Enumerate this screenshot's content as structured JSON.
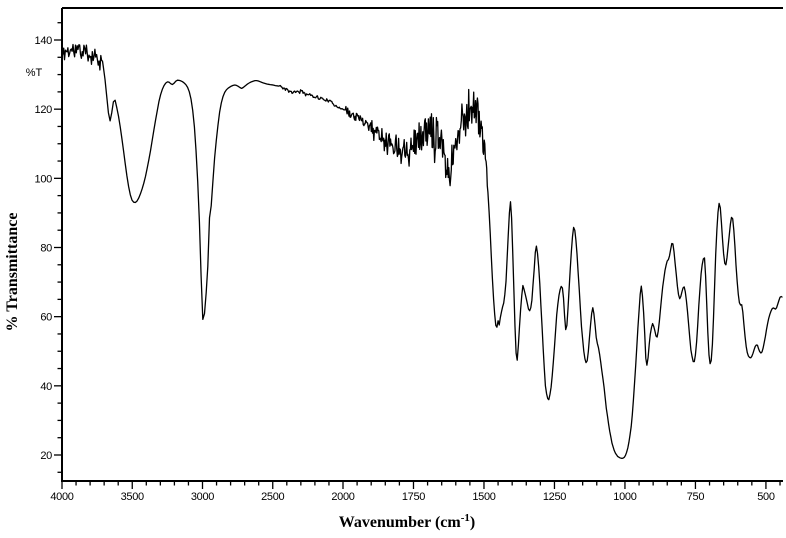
{
  "chart_data": {
    "type": "line",
    "title": "",
    "xlabel": "Wavenumber (cm⁻¹)",
    "xlabel_parts": {
      "pre": "Wavenumber (cm",
      "sup": "-1",
      "post": ")"
    },
    "ylabel": "% Transmittance",
    "y_unit_label": "%T",
    "grid": false,
    "legend": false,
    "colors": {
      "background": "#ffffff",
      "curve": "#000000",
      "axis": "#000000",
      "text": "#000000"
    },
    "x_axis": {
      "max": 4000,
      "min": 443,
      "scale_break": 2000,
      "note": "left segment 500 per division, right segment 250 per division",
      "ticks_major": [
        4000,
        3500,
        3000,
        2500,
        2000,
        1750,
        1500,
        1250,
        1000,
        750,
        500
      ],
      "minor_left": {
        "start": 2100,
        "end": 3900,
        "step": 100
      },
      "minor_right": {
        "start": 450,
        "end": 1950,
        "step": 50
      }
    },
    "y_axis": {
      "min": 12.4,
      "max": 149.2,
      "ticks_major": [
        20,
        40,
        60,
        80,
        100,
        120,
        140
      ],
      "minor": {
        "start": 15,
        "end": 145,
        "step": 5
      }
    },
    "points": [
      [
        4000,
        135
      ],
      [
        3985,
        136.2
      ],
      [
        3965,
        137
      ],
      [
        3945,
        136.6
      ],
      [
        3925,
        137.2
      ],
      [
        3905,
        137.4
      ],
      [
        3885,
        137
      ],
      [
        3865,
        136.8
      ],
      [
        3845,
        136.4
      ],
      [
        3825,
        136.2
      ],
      [
        3805,
        136
      ],
      [
        3785,
        136
      ],
      [
        3765,
        135.6
      ],
      [
        3745,
        135.2
      ],
      [
        3728,
        134.6
      ],
      [
        3712,
        133.6
      ],
      [
        3700,
        131
      ],
      [
        3686,
        125.5
      ],
      [
        3672,
        119.5
      ],
      [
        3660,
        116.3
      ],
      [
        3650,
        117.8
      ],
      [
        3640,
        120.5
      ],
      [
        3630,
        123.2
      ],
      [
        3622,
        122.6
      ],
      [
        3612,
        120.8
      ],
      [
        3600,
        118.5
      ],
      [
        3588,
        115.5
      ],
      [
        3574,
        111.5
      ],
      [
        3560,
        107.5
      ],
      [
        3546,
        103
      ],
      [
        3532,
        99
      ],
      [
        3518,
        95.8
      ],
      [
        3504,
        93.8
      ],
      [
        3490,
        93.1
      ],
      [
        3476,
        93
      ],
      [
        3462,
        93.6
      ],
      [
        3448,
        94.8
      ],
      [
        3434,
        96.4
      ],
      [
        3418,
        98.6
      ],
      [
        3402,
        101.2
      ],
      [
        3386,
        104.4
      ],
      [
        3370,
        108
      ],
      [
        3354,
        112
      ],
      [
        3338,
        116
      ],
      [
        3322,
        119.6
      ],
      [
        3308,
        122.6
      ],
      [
        3294,
        124.8
      ],
      [
        3280,
        126.4
      ],
      [
        3266,
        127.4
      ],
      [
        3252,
        127.9
      ],
      [
        3238,
        127.8
      ],
      [
        3224,
        127.3
      ],
      [
        3212,
        127.1
      ],
      [
        3200,
        127.6
      ],
      [
        3188,
        128.2
      ],
      [
        3176,
        128.4
      ],
      [
        3162,
        128.3
      ],
      [
        3148,
        128.1
      ],
      [
        3134,
        127.7
      ],
      [
        3120,
        127.2
      ],
      [
        3106,
        126.3
      ],
      [
        3092,
        124.8
      ],
      [
        3078,
        122.2
      ],
      [
        3064,
        117.8
      ],
      [
        3052,
        112
      ],
      [
        3042,
        105.5
      ],
      [
        3032,
        97.5
      ],
      [
        3022,
        87.5
      ],
      [
        3014,
        77
      ],
      [
        3006,
        66.5
      ],
      [
        3000,
        60
      ],
      [
        2995,
        58
      ],
      [
        2990,
        62.5
      ],
      [
        2985,
        60.5
      ],
      [
        2979,
        69.5
      ],
      [
        2974,
        67
      ],
      [
        2968,
        77.5
      ],
      [
        2962,
        74.5
      ],
      [
        2955,
        84
      ],
      [
        2949,
        89.5
      ],
      [
        2942,
        93.5
      ],
      [
        2935,
        91
      ],
      [
        2927,
        98.5
      ],
      [
        2919,
        103.5
      ],
      [
        2910,
        107.8
      ],
      [
        2900,
        111.8
      ],
      [
        2889,
        115.8
      ],
      [
        2877,
        119.4
      ],
      [
        2864,
        122.2
      ],
      [
        2850,
        124.2
      ],
      [
        2835,
        125.4
      ],
      [
        2820,
        126
      ],
      [
        2805,
        126.4
      ],
      [
        2788,
        126.8
      ],
      [
        2770,
        127
      ],
      [
        2752,
        126.8
      ],
      [
        2736,
        126.3
      ],
      [
        2722,
        126
      ],
      [
        2708,
        126.3
      ],
      [
        2692,
        126.9
      ],
      [
        2675,
        127.4
      ],
      [
        2658,
        127.8
      ],
      [
        2640,
        128.1
      ],
      [
        2622,
        128.3
      ],
      [
        2605,
        128.2
      ],
      [
        2588,
        127.9
      ],
      [
        2570,
        127.6
      ],
      [
        2552,
        127.4
      ],
      [
        2534,
        127.2
      ],
      [
        2516,
        127.1
      ],
      [
        2498,
        127
      ],
      [
        2480,
        126.8
      ],
      [
        2462,
        126.7
      ],
      [
        2444,
        126.5
      ],
      [
        2426,
        126.1
      ],
      [
        2408,
        125.7
      ],
      [
        2390,
        125.3
      ],
      [
        2372,
        125
      ],
      [
        2354,
        124.8
      ],
      [
        2336,
        124.9
      ],
      [
        2318,
        125.2
      ],
      [
        2300,
        125.2
      ],
      [
        2282,
        124.9
      ],
      [
        2264,
        124.5
      ],
      [
        2246,
        124.2
      ],
      [
        2228,
        124
      ],
      [
        2210,
        123.8
      ],
      [
        2192,
        123.5
      ],
      [
        2174,
        123.3
      ],
      [
        2156,
        123.1
      ],
      [
        2138,
        122.9
      ],
      [
        2120,
        122.7
      ],
      [
        2102,
        122.4
      ],
      [
        2084,
        122
      ],
      [
        2066,
        121.5
      ],
      [
        2048,
        121
      ],
      [
        2030,
        120.7
      ],
      [
        2012,
        120.3
      ],
      [
        1996,
        119.8
      ],
      [
        1980,
        119
      ],
      [
        1964,
        118.2
      ],
      [
        1948,
        117.5
      ],
      [
        1932,
        116.8
      ],
      [
        1916,
        116
      ],
      [
        1900,
        115.2
      ],
      [
        1884,
        114
      ],
      [
        1868,
        112.8
      ],
      [
        1852,
        111.6
      ],
      [
        1836,
        110.6
      ],
      [
        1820,
        109.9
      ],
      [
        1804,
        109.3
      ],
      [
        1790,
        109
      ],
      [
        1776,
        109.2
      ],
      [
        1762,
        109.7
      ],
      [
        1748,
        110.5
      ],
      [
        1734,
        111.5
      ],
      [
        1720,
        112.4
      ],
      [
        1706,
        113.2
      ],
      [
        1692,
        113.8
      ],
      [
        1678,
        114.2
      ],
      [
        1664,
        113.6
      ],
      [
        1652,
        112
      ],
      [
        1643,
        109
      ],
      [
        1635,
        104.5
      ],
      [
        1628,
        101.3
      ],
      [
        1621,
        101.6
      ],
      [
        1613,
        104.5
      ],
      [
        1603,
        108.5
      ],
      [
        1593,
        112.5
      ],
      [
        1583,
        115.5
      ],
      [
        1573,
        117.6
      ],
      [
        1563,
        119.2
      ],
      [
        1553,
        120.4
      ],
      [
        1543,
        121
      ],
      [
        1533,
        120.2
      ],
      [
        1523,
        118.4
      ],
      [
        1513,
        115.8
      ],
      [
        1504,
        112.2
      ],
      [
        1495,
        106.5
      ],
      [
        1487,
        97.5
      ],
      [
        1479,
        86
      ],
      [
        1472,
        74
      ],
      [
        1465,
        63.5
      ],
      [
        1459,
        57.8
      ],
      [
        1455,
        56.5
      ],
      [
        1450,
        58.8
      ],
      [
        1446,
        57.6
      ],
      [
        1441,
        60.2
      ],
      [
        1435,
        62.6
      ],
      [
        1429,
        64.2
      ],
      [
        1423,
        68.5
      ],
      [
        1416,
        80
      ],
      [
        1410,
        90
      ],
      [
        1406,
        93.2
      ],
      [
        1402,
        88.5
      ],
      [
        1397,
        76.5
      ],
      [
        1392,
        61.5
      ],
      [
        1387,
        50.5
      ],
      [
        1383,
        46.4
      ],
      [
        1379,
        50.5
      ],
      [
        1373,
        58.5
      ],
      [
        1367,
        65.5
      ],
      [
        1362,
        69
      ],
      [
        1356,
        67.4
      ],
      [
        1349,
        64.8
      ],
      [
        1342,
        62.2
      ],
      [
        1336,
        61.5
      ],
      [
        1330,
        64.8
      ],
      [
        1323,
        72.5
      ],
      [
        1317,
        79.8
      ],
      [
        1313,
        80.6
      ],
      [
        1308,
        76.8
      ],
      [
        1302,
        69.5
      ],
      [
        1295,
        58.5
      ],
      [
        1288,
        47.5
      ],
      [
        1282,
        40
      ],
      [
        1276,
        36.5
      ],
      [
        1270,
        36
      ],
      [
        1263,
        38.8
      ],
      [
        1256,
        44.5
      ],
      [
        1249,
        52.5
      ],
      [
        1242,
        60.5
      ],
      [
        1235,
        65.8
      ],
      [
        1228,
        68.6
      ],
      [
        1223,
        69
      ],
      [
        1218,
        65.4
      ],
      [
        1213,
        58.8
      ],
      [
        1209,
        55.4
      ],
      [
        1205,
        58.2
      ],
      [
        1199,
        66.5
      ],
      [
        1193,
        75.5
      ],
      [
        1187,
        82.5
      ],
      [
        1182,
        85.8
      ],
      [
        1177,
        84.8
      ],
      [
        1171,
        79.5
      ],
      [
        1163,
        69
      ],
      [
        1155,
        58
      ],
      [
        1147,
        50.5
      ],
      [
        1140,
        46.8
      ],
      [
        1135,
        46.6
      ],
      [
        1129,
        50.5
      ],
      [
        1123,
        57
      ],
      [
        1117,
        61.8
      ],
      [
        1113,
        62.8
      ],
      [
        1108,
        59.5
      ],
      [
        1103,
        54.5
      ],
      [
        1098,
        52.3
      ],
      [
        1093,
        50.8
      ],
      [
        1087,
        47.5
      ],
      [
        1081,
        43.8
      ],
      [
        1074,
        39.5
      ],
      [
        1066,
        33.5
      ],
      [
        1056,
        27.8
      ],
      [
        1046,
        23.4
      ],
      [
        1036,
        20.8
      ],
      [
        1026,
        19.6
      ],
      [
        1016,
        19.1
      ],
      [
        1008,
        19
      ],
      [
        1000,
        19.5
      ],
      [
        992,
        21.2
      ],
      [
        984,
        24.5
      ],
      [
        976,
        29.5
      ],
      [
        968,
        38
      ],
      [
        960,
        48.5
      ],
      [
        952,
        59.5
      ],
      [
        946,
        66.5
      ],
      [
        942,
        68.8
      ],
      [
        937,
        65.5
      ],
      [
        931,
        57
      ],
      [
        926,
        48
      ],
      [
        923,
        45.4
      ],
      [
        918,
        48.2
      ],
      [
        912,
        53.8
      ],
      [
        907,
        56.6
      ],
      [
        902,
        58
      ],
      [
        896,
        56.8
      ],
      [
        890,
        54.4
      ],
      [
        885,
        54
      ],
      [
        880,
        57
      ],
      [
        874,
        62.2
      ],
      [
        867,
        68
      ],
      [
        859,
        73
      ],
      [
        851,
        76
      ],
      [
        845,
        76.6
      ],
      [
        840,
        78.2
      ],
      [
        835,
        81
      ],
      [
        831,
        81.6
      ],
      [
        826,
        78.8
      ],
      [
        820,
        73.8
      ],
      [
        814,
        68.8
      ],
      [
        809,
        65.8
      ],
      [
        805,
        65
      ],
      [
        800,
        66.4
      ],
      [
        795,
        68.2
      ],
      [
        790,
        68.6
      ],
      [
        785,
        66.8
      ],
      [
        779,
        62.5
      ],
      [
        772,
        55.5
      ],
      [
        765,
        49.5
      ],
      [
        758,
        47
      ],
      [
        753,
        47
      ],
      [
        748,
        50.2
      ],
      [
        742,
        57.5
      ],
      [
        736,
        66
      ],
      [
        729,
        73.5
      ],
      [
        723,
        76.6
      ],
      [
        718,
        77
      ],
      [
        713,
        70.5
      ],
      [
        708,
        59.5
      ],
      [
        703,
        49.5
      ],
      [
        698,
        46.4
      ],
      [
        693,
        47.5
      ],
      [
        688,
        55
      ],
      [
        683,
        66.5
      ],
      [
        678,
        78
      ],
      [
        673,
        87
      ],
      [
        668,
        92.3
      ],
      [
        664,
        93.2
      ],
      [
        660,
        89.8
      ],
      [
        655,
        83.5
      ],
      [
        650,
        78.2
      ],
      [
        646,
        75.4
      ],
      [
        642,
        75
      ],
      [
        637,
        77.6
      ],
      [
        632,
        82
      ],
      [
        627,
        86.2
      ],
      [
        623,
        88.6
      ],
      [
        619,
        89
      ],
      [
        615,
        86.2
      ],
      [
        610,
        80.5
      ],
      [
        605,
        73.5
      ],
      [
        600,
        67.8
      ],
      [
        595,
        64.4
      ],
      [
        591,
        63
      ],
      [
        588,
        64
      ],
      [
        585,
        63.2
      ],
      [
        581,
        60.8
      ],
      [
        577,
        56.8
      ],
      [
        572,
        52.4
      ],
      [
        567,
        49.8
      ],
      [
        561,
        48.4
      ],
      [
        555,
        48
      ],
      [
        549,
        48.6
      ],
      [
        543,
        50.2
      ],
      [
        537,
        51.6
      ],
      [
        531,
        52
      ],
      [
        525,
        50.4
      ],
      [
        519,
        49.4
      ],
      [
        514,
        49.8
      ],
      [
        509,
        51.2
      ],
      [
        503,
        53.8
      ],
      [
        497,
        56.8
      ],
      [
        491,
        59.2
      ],
      [
        485,
        61
      ],
      [
        479,
        62.2
      ],
      [
        473,
        62.6
      ],
      [
        467,
        62.1
      ],
      [
        462,
        62.6
      ],
      [
        456,
        64.2
      ],
      [
        450,
        65.6
      ],
      [
        445,
        65.9
      ],
      [
        443,
        65.7
      ]
    ],
    "noise_segments": [
      {
        "from": 4000,
        "to": 3710,
        "amp": 2.4
      },
      {
        "from": 2450,
        "to": 2010,
        "amp": 0.4
      },
      {
        "from": 1992,
        "to": 1912,
        "amp": 1.3
      },
      {
        "from": 1912,
        "to": 1846,
        "amp": 2.2
      },
      {
        "from": 1846,
        "to": 1790,
        "amp": 3.2
      },
      {
        "from": 1790,
        "to": 1738,
        "amp": 4.0
      },
      {
        "from": 1738,
        "to": 1690,
        "amp": 4.6
      },
      {
        "from": 1690,
        "to": 1650,
        "amp": 5.2
      },
      {
        "from": 1650,
        "to": 1602,
        "amp": 4.2
      },
      {
        "from": 1602,
        "to": 1572,
        "amp": 4.2
      },
      {
        "from": 1572,
        "to": 1540,
        "amp": 6.0
      },
      {
        "from": 1540,
        "to": 1500,
        "amp": 5.2
      },
      {
        "from": 1500,
        "to": 1486,
        "amp": 2.2
      }
    ]
  }
}
